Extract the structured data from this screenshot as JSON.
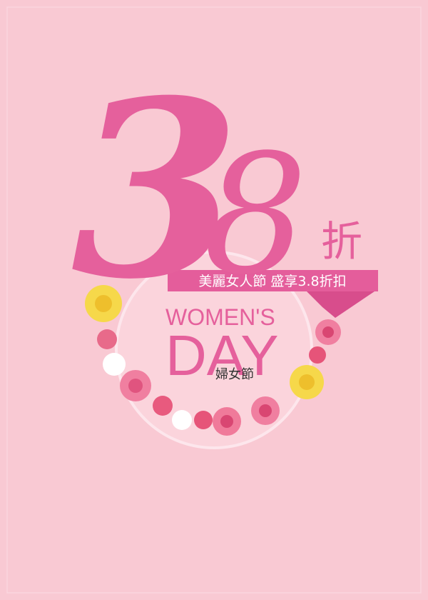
{
  "poster": {
    "big_number_first": "3",
    "big_number_second": "8",
    "discount_char": "折",
    "banner": "美麗女人節 盛享3.8折扣",
    "title_line1": "WOMEN'S",
    "title_line2": "DAY",
    "subtitle": "婦女節"
  }
}
